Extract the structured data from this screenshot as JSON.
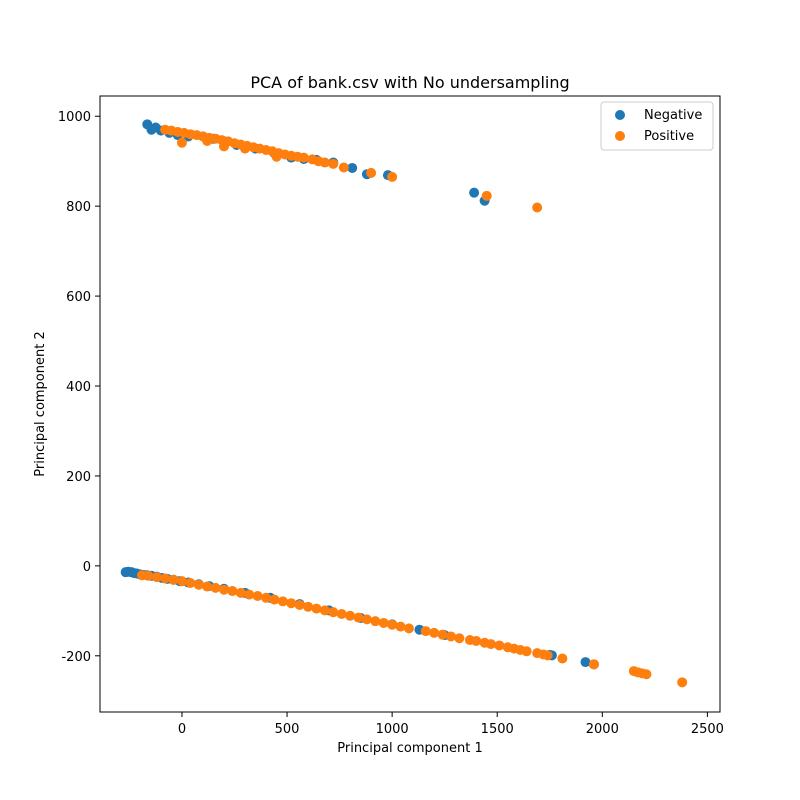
{
  "chart_data": {
    "type": "scatter",
    "title": "PCA of bank.csv with No undersampling",
    "xlabel": "Principal component 1",
    "ylabel": "Principal component 2",
    "xlim": [
      -390,
      2560
    ],
    "ylim": [
      -325,
      1045
    ],
    "xticks": [
      0,
      500,
      1000,
      1500,
      2000,
      2500
    ],
    "yticks": [
      -200,
      0,
      200,
      400,
      600,
      800,
      1000
    ],
    "legend_position": "top-right",
    "series": [
      {
        "name": "Negative",
        "color": "#1f77b4",
        "points": [
          [
            -268,
            -14
          ],
          [
            -255,
            -13
          ],
          [
            -240,
            -14
          ],
          [
            -228,
            -16
          ],
          [
            -215,
            -17
          ],
          [
            -200,
            -19
          ],
          [
            -185,
            -20
          ],
          [
            -165,
            -21
          ],
          [
            -145,
            -22
          ],
          [
            -120,
            -24
          ],
          [
            -95,
            -27
          ],
          [
            -70,
            -29
          ],
          [
            -40,
            -31
          ],
          [
            -10,
            -34
          ],
          [
            30,
            -37
          ],
          [
            80,
            -41
          ],
          [
            130,
            -45
          ],
          [
            200,
            -51
          ],
          [
            300,
            -60
          ],
          [
            420,
            -71
          ],
          [
            560,
            -85
          ],
          [
            700,
            -99
          ],
          [
            850,
            -116
          ],
          [
            1000,
            -130
          ],
          [
            1130,
            -142
          ],
          [
            1250,
            -154
          ],
          [
            1750,
            -198
          ],
          [
            1760,
            -199
          ],
          [
            1920,
            -214
          ],
          [
            1960,
            -219
          ],
          [
            -165,
            982
          ],
          [
            -145,
            970
          ],
          [
            -125,
            975
          ],
          [
            -100,
            968
          ],
          [
            -60,
            963
          ],
          [
            -20,
            958
          ],
          [
            30,
            955
          ],
          [
            100,
            955
          ],
          [
            150,
            950
          ],
          [
            200,
            944
          ],
          [
            260,
            936
          ],
          [
            350,
            928
          ],
          [
            440,
            918
          ],
          [
            520,
            908
          ],
          [
            580,
            905
          ],
          [
            640,
            903
          ],
          [
            720,
            897
          ],
          [
            810,
            885
          ],
          [
            880,
            871
          ],
          [
            980,
            869
          ],
          [
            1390,
            830
          ],
          [
            1440,
            812
          ]
        ]
      },
      {
        "name": "Positive",
        "color": "#ff7f0e",
        "points": [
          [
            -190,
            -21
          ],
          [
            -160,
            -22
          ],
          [
            -120,
            -25
          ],
          [
            -80,
            -28
          ],
          [
            -40,
            -31
          ],
          [
            0,
            -34
          ],
          [
            40,
            -38
          ],
          [
            80,
            -42
          ],
          [
            120,
            -46
          ],
          [
            160,
            -49
          ],
          [
            200,
            -53
          ],
          [
            240,
            -56
          ],
          [
            280,
            -60
          ],
          [
            320,
            -64
          ],
          [
            360,
            -67
          ],
          [
            400,
            -71
          ],
          [
            440,
            -75
          ],
          [
            480,
            -79
          ],
          [
            520,
            -83
          ],
          [
            560,
            -87
          ],
          [
            600,
            -91
          ],
          [
            640,
            -95
          ],
          [
            680,
            -99
          ],
          [
            720,
            -103
          ],
          [
            760,
            -107
          ],
          [
            800,
            -111
          ],
          [
            840,
            -115
          ],
          [
            880,
            -119
          ],
          [
            920,
            -123
          ],
          [
            960,
            -127
          ],
          [
            1000,
            -131
          ],
          [
            1040,
            -135
          ],
          [
            1080,
            -139
          ],
          [
            1160,
            -145
          ],
          [
            1200,
            -149
          ],
          [
            1240,
            -153
          ],
          [
            1280,
            -157
          ],
          [
            1320,
            -161
          ],
          [
            1370,
            -165
          ],
          [
            1400,
            -167
          ],
          [
            1440,
            -171
          ],
          [
            1470,
            -174
          ],
          [
            1510,
            -177
          ],
          [
            1550,
            -181
          ],
          [
            1580,
            -184
          ],
          [
            1610,
            -187
          ],
          [
            1640,
            -190
          ],
          [
            1690,
            -194
          ],
          [
            1720,
            -197
          ],
          [
            1740,
            -199
          ],
          [
            1810,
            -206
          ],
          [
            1960,
            -219
          ],
          [
            2150,
            -234
          ],
          [
            2170,
            -237
          ],
          [
            2190,
            -239
          ],
          [
            2210,
            -241
          ],
          [
            2380,
            -259
          ],
          [
            -80,
            970
          ],
          [
            -50,
            968
          ],
          [
            -20,
            965
          ],
          [
            10,
            963
          ],
          [
            40,
            960
          ],
          [
            70,
            958
          ],
          [
            100,
            955
          ],
          [
            130,
            952
          ],
          [
            160,
            950
          ],
          [
            190,
            947
          ],
          [
            220,
            944
          ],
          [
            250,
            940
          ],
          [
            280,
            937
          ],
          [
            310,
            934
          ],
          [
            340,
            931
          ],
          [
            370,
            928
          ],
          [
            400,
            925
          ],
          [
            430,
            922
          ],
          [
            460,
            918
          ],
          [
            490,
            915
          ],
          [
            520,
            912
          ],
          [
            550,
            910
          ],
          [
            580,
            908
          ],
          [
            620,
            904
          ],
          [
            650,
            900
          ],
          [
            680,
            897
          ],
          [
            720,
            894
          ],
          [
            770,
            886
          ],
          [
            900,
            874
          ],
          [
            1000,
            865
          ],
          [
            1450,
            823
          ],
          [
            1690,
            797
          ],
          [
            0,
            941
          ],
          [
            120,
            945
          ],
          [
            200,
            933
          ],
          [
            300,
            928
          ],
          [
            450,
            910
          ]
        ]
      }
    ]
  }
}
